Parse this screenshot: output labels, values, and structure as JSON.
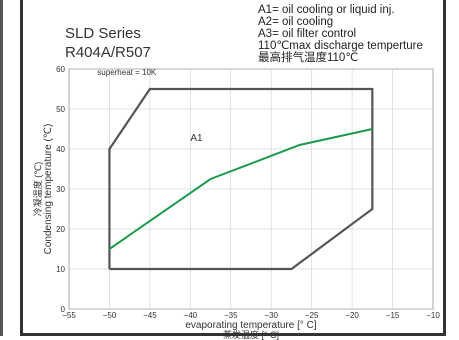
{
  "header": {
    "series_name": "SLD Series",
    "refrigerant": "R404A/R507"
  },
  "notes": [
    "A1= oil cooling or liquid inj.",
    "A2= oil cooling",
    "A3= oil filter control",
    "110℃max discharge temperture",
    "最高排气温度110℃"
  ],
  "chart_data": {
    "type": "line",
    "xlabel": "evaporating temperature [° C]",
    "xlabel_cn": "蒸发温度 [° C]",
    "ylabel": "Condensing temperature (℃)",
    "ylabel_cn": "冷凝温度 (℃)",
    "xlim": [
      -55,
      -10
    ],
    "ylim": [
      0,
      60
    ],
    "xticks": [
      -55,
      -50,
      -45,
      -40,
      -35,
      -30,
      -25,
      -20,
      -15,
      -10
    ],
    "yticks": [
      0,
      10,
      20,
      30,
      40,
      50,
      60
    ],
    "x_tick_labels": [
      "−55",
      "−50",
      "−45",
      "−40",
      "−35",
      "−30",
      "−25",
      "−20",
      "−15",
      "−10"
    ],
    "y_tick_labels": [
      "0",
      "10",
      "20",
      "30",
      "40",
      "50",
      "60"
    ],
    "grid": true,
    "envelope": {
      "color": "#555555",
      "points": [
        [
          -50,
          10
        ],
        [
          -27.5,
          10
        ],
        [
          -17.5,
          25
        ],
        [
          -17.5,
          55
        ],
        [
          -45,
          55
        ],
        [
          -50,
          40
        ],
        [
          -50,
          10
        ]
      ]
    },
    "series": [
      {
        "color": "#1a9a4a",
        "points": [
          [
            -50,
            15
          ],
          [
            -37.5,
            32.5
          ],
          [
            -26.5,
            41
          ],
          [
            -17.5,
            45
          ]
        ]
      }
    ],
    "annotations": [
      {
        "text": "superheat = 10K",
        "x": -51.5,
        "y": 58.5
      },
      {
        "text": "A1",
        "x": -40,
        "y": 42
      }
    ]
  }
}
